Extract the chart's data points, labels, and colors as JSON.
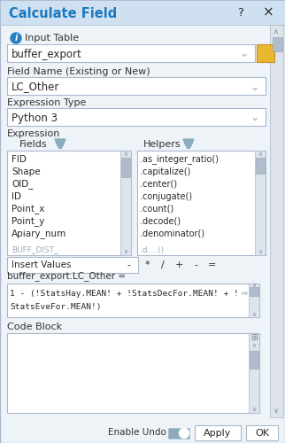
{
  "title": "Calculate Field",
  "title_color": "#1b7abf",
  "dialog_bg": "#eef3f8",
  "header_bg": "#cfe0f0",
  "input_table_label": "Input Table",
  "input_table_value": "buffer_export",
  "field_name_label": "Field Name (Existing or New)",
  "field_name_value": "LC_Other",
  "expr_type_label": "Expression Type",
  "expr_type_value": "Python 3",
  "expression_label": "Expression",
  "fields_label": "Fields",
  "helpers_label": "Helpers",
  "fields_list": [
    "FID",
    "Shape",
    "OID_",
    "ID",
    "Point_x",
    "Point_y",
    "Apiary_num"
  ],
  "fields_partial": "BUFF_DIST_",
  "helpers_list": [
    ".as_integer_ratio()",
    ".capitalize()",
    ".center()",
    ".conjugate()",
    ".count()",
    ".decode()",
    ".denominator()"
  ],
  "helpers_partial": ".d....()",
  "insert_values": "Insert Values",
  "operators": [
    "*",
    "/",
    "+",
    "-",
    "="
  ],
  "field_eq_label": "buffer_export.LC_Other =",
  "expression_text_line1": "1 - (!StatsHay.MEAN! + !StatsDecFor.MEAN! + !",
  "expression_text_line2": "StatsEveFor.MEAN!)",
  "code_block_label": "Code Block",
  "enable_undo_label": "Enable Undo",
  "apply_btn": "Apply",
  "ok_btn": "OK",
  "border_color": "#aab8cc",
  "text_color": "#2a2a2a",
  "label_color": "#333333",
  "white": "#ffffff",
  "light_gray": "#e4eaf0",
  "medium_gray": "#9aaabb",
  "dark_gray": "#7a8a9a",
  "scrollbar_thumb": "#b0bccc",
  "scrollbar_bg": "#dde4ec",
  "header_blue": "#3a7abf",
  "info_icon_color": "#2a7fc0",
  "folder_yellow": "#e8b830",
  "folder_border": "#c89020",
  "toggle_bg": "#8aabb8",
  "toggle_knob": "#ffffff",
  "funnel_color": "#8aacbc"
}
